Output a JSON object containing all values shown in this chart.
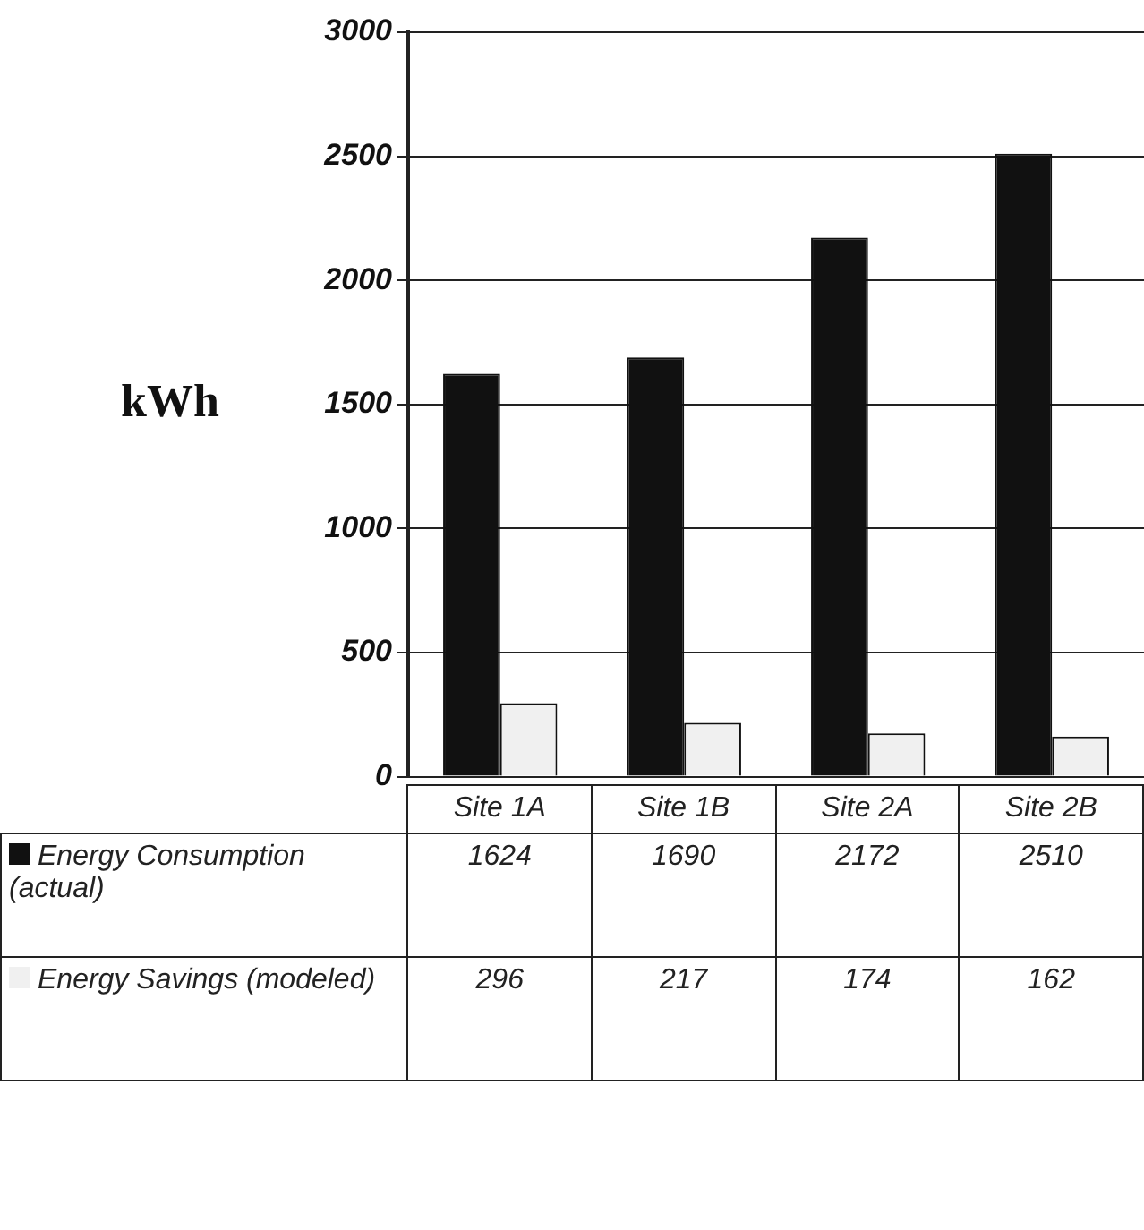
{
  "chart_data": {
    "type": "bar",
    "ylabel": "kWh",
    "categories": [
      "Site 1A",
      "Site 1B",
      "Site 2A",
      "Site 2B"
    ],
    "series": [
      {
        "name": "Energy Consumption (actual)",
        "color": "#111111",
        "values": [
          1624,
          1690,
          2172,
          2510
        ]
      },
      {
        "name": "Energy Savings (modeled)",
        "color": "#f0f0f0",
        "values": [
          296,
          217,
          174,
          162
        ]
      }
    ],
    "ylim": [
      0,
      3000
    ],
    "yticks": [
      0,
      500,
      1000,
      1500,
      2000,
      2500,
      3000
    ],
    "grid": "y",
    "legend": "bottom",
    "data_labels": true
  }
}
